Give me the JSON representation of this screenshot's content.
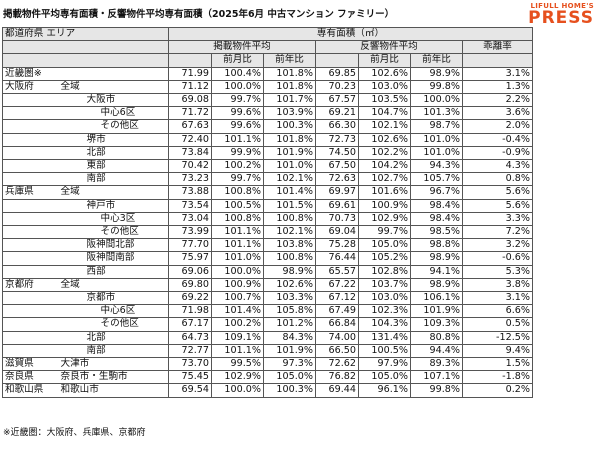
{
  "title": "掲載物件平均専有面積・反響物件平均専有面積（2025年6月 中古マンション ファミリー）",
  "logo": {
    "sub": "LIFULL HOME'S",
    "main": "PRESS",
    "color": "#e6501e"
  },
  "header": {
    "area": "都道府県 エリア",
    "main": "専有面積（㎡）",
    "listed": "掲載物件平均",
    "response": "反響物件平均",
    "gap": "乖離率",
    "mom": "前月比",
    "yoy": "前年比"
  },
  "rows": [
    {
      "p": "近畿圏※",
      "a": "",
      "lvl": 0,
      "v": [
        "71.99",
        "100.4%",
        "101.8%",
        "69.85",
        "102.6%",
        "98.9%",
        "3.1%"
      ]
    },
    {
      "p": "大阪府",
      "a": "全域",
      "lvl": 0,
      "sec": true,
      "v": [
        "71.12",
        "100.0%",
        "101.8%",
        "70.23",
        "103.0%",
        "99.8%",
        "1.3%"
      ]
    },
    {
      "p": "",
      "a": "大阪市",
      "lvl": 2,
      "v": [
        "69.08",
        "99.7%",
        "101.7%",
        "67.57",
        "103.5%",
        "100.0%",
        "2.2%"
      ]
    },
    {
      "p": "",
      "a": "中心6区",
      "lvl": 3,
      "v": [
        "71.72",
        "99.6%",
        "103.9%",
        "69.21",
        "104.7%",
        "101.3%",
        "3.6%"
      ]
    },
    {
      "p": "",
      "a": "その他区",
      "lvl": 3,
      "v": [
        "67.63",
        "99.6%",
        "100.3%",
        "66.30",
        "102.1%",
        "98.7%",
        "2.0%"
      ]
    },
    {
      "p": "",
      "a": "堺市",
      "lvl": 2,
      "v": [
        "72.40",
        "101.1%",
        "101.8%",
        "72.73",
        "102.6%",
        "101.0%",
        "-0.4%"
      ]
    },
    {
      "p": "",
      "a": "北部",
      "lvl": 2,
      "v": [
        "73.84",
        "99.9%",
        "101.9%",
        "74.50",
        "102.2%",
        "101.0%",
        "-0.9%"
      ]
    },
    {
      "p": "",
      "a": "東部",
      "lvl": 2,
      "v": [
        "70.42",
        "100.2%",
        "101.0%",
        "67.50",
        "104.2%",
        "94.3%",
        "4.3%"
      ]
    },
    {
      "p": "",
      "a": "南部",
      "lvl": 2,
      "v": [
        "73.23",
        "99.7%",
        "102.1%",
        "72.63",
        "102.7%",
        "105.7%",
        "0.8%"
      ]
    },
    {
      "p": "兵庫県",
      "a": "全域",
      "lvl": 0,
      "sec": true,
      "v": [
        "73.88",
        "100.8%",
        "101.4%",
        "69.97",
        "101.6%",
        "96.7%",
        "5.6%"
      ]
    },
    {
      "p": "",
      "a": "神戸市",
      "lvl": 2,
      "v": [
        "73.54",
        "100.5%",
        "101.5%",
        "69.61",
        "100.9%",
        "98.4%",
        "5.6%"
      ]
    },
    {
      "p": "",
      "a": "中心3区",
      "lvl": 3,
      "v": [
        "73.04",
        "100.8%",
        "100.8%",
        "70.73",
        "102.9%",
        "98.4%",
        "3.3%"
      ]
    },
    {
      "p": "",
      "a": "その他区",
      "lvl": 3,
      "v": [
        "73.99",
        "101.1%",
        "102.1%",
        "69.04",
        "99.7%",
        "98.5%",
        "7.2%"
      ]
    },
    {
      "p": "",
      "a": "阪神間北部",
      "lvl": 2,
      "v": [
        "77.70",
        "101.1%",
        "103.8%",
        "75.28",
        "105.0%",
        "98.8%",
        "3.2%"
      ]
    },
    {
      "p": "",
      "a": "阪神間南部",
      "lvl": 2,
      "v": [
        "75.97",
        "101.0%",
        "100.8%",
        "76.44",
        "105.2%",
        "98.9%",
        "-0.6%"
      ]
    },
    {
      "p": "",
      "a": "西部",
      "lvl": 2,
      "v": [
        "69.06",
        "100.0%",
        "98.9%",
        "65.57",
        "102.8%",
        "94.1%",
        "5.3%"
      ]
    },
    {
      "p": "京都府",
      "a": "全域",
      "lvl": 0,
      "sec": true,
      "v": [
        "69.80",
        "100.9%",
        "102.6%",
        "67.22",
        "103.7%",
        "98.9%",
        "3.8%"
      ]
    },
    {
      "p": "",
      "a": "京都市",
      "lvl": 2,
      "v": [
        "69.22",
        "100.7%",
        "103.3%",
        "67.12",
        "103.0%",
        "106.1%",
        "3.1%"
      ]
    },
    {
      "p": "",
      "a": "中心6区",
      "lvl": 3,
      "v": [
        "71.98",
        "101.4%",
        "105.8%",
        "67.49",
        "102.3%",
        "101.9%",
        "6.6%"
      ]
    },
    {
      "p": "",
      "a": "その他区",
      "lvl": 3,
      "v": [
        "67.17",
        "100.2%",
        "101.2%",
        "66.84",
        "104.3%",
        "109.3%",
        "0.5%"
      ]
    },
    {
      "p": "",
      "a": "北部",
      "lvl": 2,
      "v": [
        "64.73",
        "109.1%",
        "84.3%",
        "74.00",
        "131.4%",
        "80.8%",
        "-12.5%"
      ]
    },
    {
      "p": "",
      "a": "南部",
      "lvl": 2,
      "v": [
        "72.77",
        "101.1%",
        "101.9%",
        "66.50",
        "100.5%",
        "94.4%",
        "9.4%"
      ]
    },
    {
      "p": "滋賀県",
      "a": "大津市",
      "lvl": 1,
      "sec": true,
      "v": [
        "73.70",
        "99.5%",
        "97.3%",
        "72.62",
        "97.9%",
        "89.3%",
        "1.5%"
      ]
    },
    {
      "p": "奈良県",
      "a": "奈良市・生駒市",
      "lvl": 1,
      "sec": true,
      "v": [
        "75.45",
        "102.9%",
        "105.0%",
        "76.82",
        "105.0%",
        "107.1%",
        "-1.8%"
      ]
    },
    {
      "p": "和歌山県",
      "a": "和歌山市",
      "lvl": 1,
      "sec": true,
      "v": [
        "69.54",
        "100.0%",
        "100.3%",
        "69.44",
        "96.1%",
        "99.8%",
        "0.2%"
      ]
    }
  ],
  "footnote": "※近畿圏：大阪府、兵庫県、京都府"
}
